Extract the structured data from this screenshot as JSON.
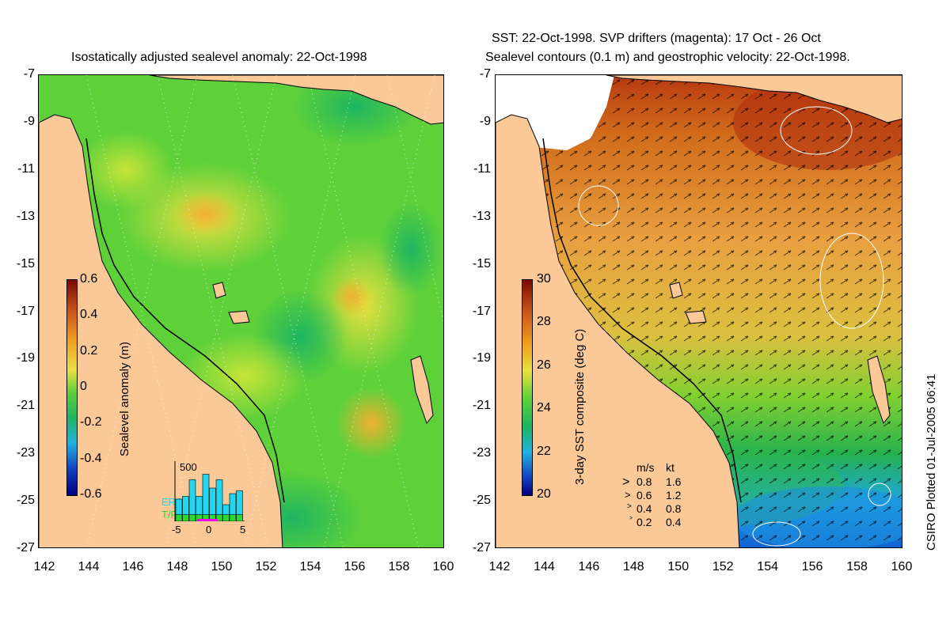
{
  "left_panel": {
    "title": "Isostatically adjusted sealevel anomaly: 22-Oct-1998",
    "y_ticks": [
      "-7",
      "-9",
      "-11",
      "-13",
      "-15",
      "-17",
      "-19",
      "-21",
      "-23",
      "-25",
      "-27"
    ],
    "x_ticks": [
      "142",
      "144",
      "146",
      "148",
      "150",
      "152",
      "154",
      "156",
      "158",
      "160"
    ],
    "colorbar": {
      "label": "Sealevel anomaly (m)",
      "ticks": [
        "0.6",
        "0.4",
        "0.2",
        "0",
        "-0.2",
        "-0.4",
        "-0.6"
      ]
    },
    "inset": {
      "ymax_label": "500",
      "series": [
        "ERS-2",
        "T/P"
      ],
      "x_ticks": [
        "-5",
        "0",
        "5"
      ],
      "ers2_bar_fraction": [
        0.4,
        0.45,
        0.75,
        0.45,
        0.85,
        0.6,
        0.75,
        0.3,
        0.5,
        0.55
      ],
      "tp_bar_fraction": [
        0.12,
        0.12,
        0.12,
        0.12,
        0.12,
        0.12,
        0.12,
        0.12,
        0.12,
        0.12
      ]
    }
  },
  "right_panel": {
    "title_line1": "SST: 22-Oct-1998. SVP drifters (magenta): 17 Oct - 26 Oct",
    "title_line2": "Sealevel contours (0.1 m) and geostrophic velocity: 22-Oct-1998.",
    "y_ticks": [
      "-7",
      "-9",
      "-11",
      "-13",
      "-15",
      "-17",
      "-19",
      "-21",
      "-23",
      "-25",
      "-27"
    ],
    "x_ticks": [
      "142",
      "144",
      "146",
      "148",
      "150",
      "152",
      "154",
      "156",
      "158",
      "160"
    ],
    "colorbar": {
      "label": "3-day SST composite (deg C)",
      "ticks": [
        "30",
        "28",
        "26",
        "24",
        "22",
        "20"
      ]
    },
    "velocity_legend": {
      "header_ms": "m/s",
      "header_kt": "kt",
      "rows": [
        {
          "ms": "0.8",
          "kt": "1.6"
        },
        {
          "ms": "0.6",
          "kt": "1.2"
        },
        {
          "ms": "0.4",
          "kt": "0.8"
        },
        {
          "ms": "0.2",
          "kt": "0.4"
        }
      ]
    }
  },
  "credit": "CSIRO Plotted 01-Jul-2005 06:41",
  "colors": {
    "land": "#fbc898",
    "sla_mid": "#5ed13a",
    "sst_warm": "#d06a1a",
    "sst_cool": "#1ea8e0",
    "ers2": "#22d6f0",
    "tp": "#2fd82f",
    "drifter": "#ff00ff"
  }
}
